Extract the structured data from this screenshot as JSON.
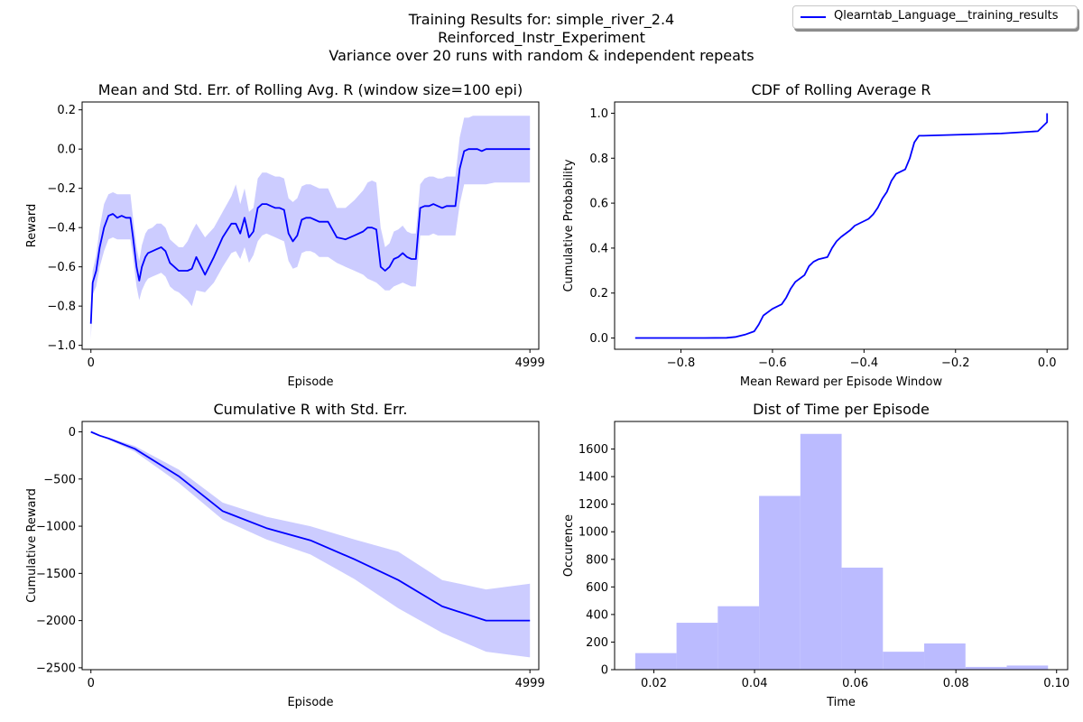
{
  "figure": {
    "title_lines": [
      "Training Results for: simple_river_2.4",
      "Reinforced_Instr_Experiment",
      "Variance over 20 runs with random & independent repeats"
    ],
    "legend": {
      "label": "Qlearntab_Language__training_results",
      "color": "#0000ff"
    }
  },
  "chart_data": [
    {
      "type": "line",
      "title": "Mean and Std. Err. of Rolling Avg. R (window size=100 epi)",
      "xlabel": "Episode",
      "ylabel": "Reward",
      "xlim": [
        -100,
        5100
      ],
      "ylim": [
        -1.02,
        0.24
      ],
      "xticks": [
        0,
        4999
      ],
      "yticks": [
        -1.0,
        -0.8,
        -0.6,
        -0.4,
        -0.2,
        0.0,
        0.2
      ],
      "ytick_labels": [
        "−1.0",
        "−0.8",
        "−0.6",
        "−0.4",
        "−0.2",
        "0.0",
        "0.2"
      ],
      "x": [
        0,
        20,
        60,
        100,
        150,
        200,
        250,
        300,
        350,
        400,
        450,
        480,
        520,
        550,
        580,
        620,
        650,
        700,
        750,
        800,
        850,
        900,
        950,
        1000,
        1050,
        1100,
        1150,
        1200,
        1300,
        1400,
        1500,
        1600,
        1650,
        1700,
        1750,
        1800,
        1850,
        1900,
        1950,
        2000,
        2050,
        2100,
        2150,
        2200,
        2250,
        2300,
        2350,
        2400,
        2450,
        2500,
        2550,
        2600,
        2700,
        2800,
        2900,
        3000,
        3100,
        3150,
        3200,
        3250,
        3300,
        3350,
        3400,
        3450,
        3500,
        3550,
        3600,
        3650,
        3700,
        3750,
        3800,
        3850,
        3900,
        3950,
        4000,
        4050,
        4100,
        4150,
        4200,
        4250,
        4300,
        4350,
        4400,
        4450,
        4500,
        4600,
        4700,
        4800,
        4900,
        4999
      ],
      "mean": [
        -0.89,
        -0.68,
        -0.62,
        -0.5,
        -0.4,
        -0.34,
        -0.33,
        -0.35,
        -0.34,
        -0.35,
        -0.35,
        -0.45,
        -0.6,
        -0.67,
        -0.6,
        -0.55,
        -0.53,
        -0.52,
        -0.51,
        -0.5,
        -0.52,
        -0.58,
        -0.6,
        -0.62,
        -0.62,
        -0.62,
        -0.61,
        -0.55,
        -0.64,
        -0.55,
        -0.45,
        -0.38,
        -0.38,
        -0.43,
        -0.35,
        -0.45,
        -0.42,
        -0.3,
        -0.28,
        -0.28,
        -0.29,
        -0.3,
        -0.3,
        -0.31,
        -0.43,
        -0.47,
        -0.44,
        -0.36,
        -0.35,
        -0.35,
        -0.36,
        -0.37,
        -0.37,
        -0.45,
        -0.46,
        -0.44,
        -0.42,
        -0.4,
        -0.4,
        -0.41,
        -0.6,
        -0.62,
        -0.6,
        -0.56,
        -0.55,
        -0.53,
        -0.55,
        -0.56,
        -0.56,
        -0.3,
        -0.29,
        -0.29,
        -0.28,
        -0.29,
        -0.3,
        -0.29,
        -0.29,
        -0.29,
        -0.1,
        -0.01,
        0.0,
        0.0,
        0.0,
        -0.01,
        0.0,
        0.0,
        0.0,
        0.0,
        0.0,
        0.0
      ],
      "band_low": [
        -0.97,
        -0.74,
        -0.7,
        -0.6,
        -0.52,
        -0.46,
        -0.45,
        -0.46,
        -0.46,
        -0.46,
        -0.46,
        -0.55,
        -0.7,
        -0.77,
        -0.72,
        -0.68,
        -0.66,
        -0.65,
        -0.64,
        -0.63,
        -0.65,
        -0.7,
        -0.72,
        -0.73,
        -0.75,
        -0.77,
        -0.8,
        -0.72,
        -0.73,
        -0.68,
        -0.6,
        -0.53,
        -0.52,
        -0.56,
        -0.5,
        -0.58,
        -0.54,
        -0.47,
        -0.44,
        -0.43,
        -0.44,
        -0.45,
        -0.46,
        -0.47,
        -0.57,
        -0.61,
        -0.6,
        -0.53,
        -0.52,
        -0.52,
        -0.53,
        -0.55,
        -0.55,
        -0.58,
        -0.6,
        -0.62,
        -0.64,
        -0.66,
        -0.67,
        -0.68,
        -0.7,
        -0.72,
        -0.72,
        -0.7,
        -0.69,
        -0.68,
        -0.69,
        -0.7,
        -0.7,
        -0.44,
        -0.44,
        -0.44,
        -0.43,
        -0.44,
        -0.44,
        -0.44,
        -0.44,
        -0.44,
        -0.28,
        -0.18,
        -0.18,
        -0.18,
        -0.18,
        -0.18,
        -0.18,
        -0.17,
        -0.17,
        -0.17,
        -0.17,
        -0.17
      ],
      "band_high": [
        -0.81,
        -0.62,
        -0.54,
        -0.4,
        -0.28,
        -0.23,
        -0.22,
        -0.23,
        -0.23,
        -0.23,
        -0.23,
        -0.35,
        -0.5,
        -0.57,
        -0.49,
        -0.43,
        -0.41,
        -0.4,
        -0.38,
        -0.38,
        -0.4,
        -0.46,
        -0.48,
        -0.5,
        -0.5,
        -0.47,
        -0.42,
        -0.38,
        -0.45,
        -0.4,
        -0.32,
        -0.24,
        -0.18,
        -0.28,
        -0.2,
        -0.32,
        -0.3,
        -0.15,
        -0.12,
        -0.12,
        -0.13,
        -0.14,
        -0.14,
        -0.15,
        -0.25,
        -0.27,
        -0.25,
        -0.19,
        -0.18,
        -0.18,
        -0.19,
        -0.2,
        -0.2,
        -0.3,
        -0.3,
        -0.26,
        -0.21,
        -0.17,
        -0.16,
        -0.17,
        -0.4,
        -0.5,
        -0.48,
        -0.42,
        -0.41,
        -0.39,
        -0.42,
        -0.43,
        -0.43,
        -0.18,
        -0.15,
        -0.14,
        -0.14,
        -0.15,
        -0.15,
        -0.14,
        -0.14,
        -0.14,
        0.06,
        0.16,
        0.16,
        0.17,
        0.17,
        0.17,
        0.17,
        0.17,
        0.17,
        0.17,
        0.17,
        0.17
      ]
    },
    {
      "type": "line",
      "title": "CDF of Rolling Average R",
      "xlabel": "Mean Reward per Episode Window",
      "ylabel": "Cumulative Probability",
      "xlim": [
        -0.945,
        0.045
      ],
      "ylim": [
        -0.05,
        1.05
      ],
      "xticks": [
        -0.8,
        -0.6,
        -0.4,
        -0.2,
        0.0
      ],
      "xtick_labels": [
        "−0.8",
        "−0.6",
        "−0.4",
        "−0.2",
        "0.0"
      ],
      "yticks": [
        0.0,
        0.2,
        0.4,
        0.6,
        0.8,
        1.0
      ],
      "ytick_labels": [
        "0.0",
        "0.2",
        "0.4",
        "0.6",
        "0.8",
        "1.0"
      ],
      "x": [
        -0.9,
        -0.75,
        -0.7,
        -0.68,
        -0.66,
        -0.64,
        -0.63,
        -0.62,
        -0.6,
        -0.58,
        -0.57,
        -0.56,
        -0.55,
        -0.53,
        -0.52,
        -0.51,
        -0.5,
        -0.48,
        -0.47,
        -0.46,
        -0.45,
        -0.43,
        -0.42,
        -0.4,
        -0.39,
        -0.38,
        -0.37,
        -0.36,
        -0.35,
        -0.34,
        -0.33,
        -0.32,
        -0.31,
        -0.3,
        -0.29,
        -0.28,
        -0.27,
        -0.1,
        -0.02,
        -0.01,
        0.0,
        0.0
      ],
      "y": [
        0.0,
        0.0,
        0.001,
        0.005,
        0.015,
        0.03,
        0.06,
        0.1,
        0.13,
        0.15,
        0.18,
        0.22,
        0.25,
        0.28,
        0.32,
        0.34,
        0.35,
        0.36,
        0.4,
        0.43,
        0.45,
        0.48,
        0.5,
        0.52,
        0.53,
        0.55,
        0.58,
        0.62,
        0.65,
        0.7,
        0.73,
        0.74,
        0.75,
        0.8,
        0.87,
        0.9,
        0.9,
        0.91,
        0.92,
        0.94,
        0.96,
        1.0
      ]
    },
    {
      "type": "line",
      "title": "Cumulative R with Std. Err.",
      "xlabel": "Episode",
      "ylabel": "Cumulative Reward",
      "xlim": [
        -100,
        5100
      ],
      "ylim": [
        -2520,
        110
      ],
      "xticks": [
        0,
        4999
      ],
      "yticks": [
        0,
        -500,
        -1000,
        -1500,
        -2000,
        -2500
      ],
      "ytick_labels": [
        "0",
        "−500",
        "−1000",
        "−1500",
        "−2000",
        "−2500"
      ],
      "x": [
        0,
        100,
        200,
        500,
        1000,
        1500,
        2000,
        2500,
        3000,
        3500,
        4000,
        4500,
        4999
      ],
      "mean": [
        0,
        -40,
        -70,
        -180,
        -470,
        -840,
        -1020,
        -1150,
        -1350,
        -1570,
        -1850,
        -2000,
        -2000
      ],
      "band_low": [
        0,
        -45,
        -80,
        -210,
        -540,
        -930,
        -1140,
        -1300,
        -1560,
        -1870,
        -2130,
        -2330,
        -2390
      ],
      "band_high": [
        0,
        -35,
        -60,
        -150,
        -400,
        -750,
        -900,
        -1000,
        -1140,
        -1270,
        -1570,
        -1670,
        -1610
      ]
    },
    {
      "type": "bar",
      "title": "Dist of Time per Episode",
      "xlabel": "Time",
      "ylabel": "Occurence",
      "xlim": [
        0.0122,
        0.1022
      ],
      "ylim": [
        0,
        1800
      ],
      "xticks": [
        0.02,
        0.04,
        0.06,
        0.08,
        0.1
      ],
      "xtick_labels": [
        "0.02",
        "0.04",
        "0.06",
        "0.08",
        "0.10"
      ],
      "yticks": [
        0,
        200,
        400,
        600,
        800,
        1000,
        1200,
        1400,
        1600
      ],
      "ytick_labels": [
        "0",
        "200",
        "400",
        "600",
        "800",
        "1000",
        "1200",
        "1400",
        "1600"
      ],
      "bin_edges": [
        0.0163,
        0.0245,
        0.0327,
        0.0409,
        0.0491,
        0.0573,
        0.0655,
        0.0737,
        0.0819,
        0.0901,
        0.0983
      ],
      "values": [
        120,
        340,
        460,
        1260,
        1710,
        740,
        130,
        190,
        20,
        30
      ],
      "color": "#bbbbff"
    }
  ]
}
